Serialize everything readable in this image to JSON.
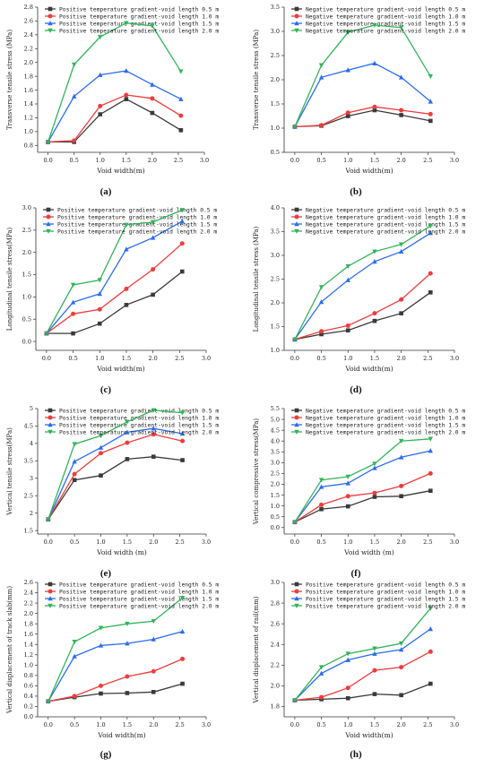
{
  "colors": {
    "black": "#3a3a3a",
    "red": "#f03c3c",
    "blue": "#2a6cf2",
    "green": "#32b45a"
  },
  "chart_data": [
    {
      "label": "(a)",
      "type": "line",
      "xlabel": "Void width(m)",
      "ylabel": "Transverse tensile stress (MPa)",
      "xlim": [
        -0.2,
        3.0
      ],
      "ylim": [
        0.7,
        2.8
      ],
      "xticks": [
        "0.0",
        "0.5",
        "1.0",
        "1.5",
        "2.0",
        "2.5",
        "3.0"
      ],
      "yticks": [
        "0.8",
        "1.0",
        "1.2",
        "1.4",
        "1.6",
        "1.8",
        "2.0",
        "2.2",
        "2.4",
        "2.6",
        "2.8"
      ],
      "legend": "top-left",
      "x": [
        0,
        0.5,
        1.0,
        1.5,
        2.0,
        2.55
      ],
      "series": [
        {
          "name": "Positive temperature gradient-void length 0.5 m",
          "color": "black",
          "marker": "square",
          "values": [
            0.85,
            0.85,
            1.25,
            1.47,
            1.27,
            1.02
          ]
        },
        {
          "name": "Positive temperature gradient-void length 1.0 m",
          "color": "red",
          "marker": "circle",
          "values": [
            0.85,
            0.87,
            1.37,
            1.53,
            1.48,
            1.23
          ]
        },
        {
          "name": "Positive temperature gradient-void length 1.5 m",
          "color": "blue",
          "marker": "up",
          "values": [
            0.85,
            1.51,
            1.82,
            1.88,
            1.68,
            1.47
          ]
        },
        {
          "name": "Positive temperature gradient-void length 2.0 m",
          "color": "green",
          "marker": "down",
          "values": [
            0.85,
            1.97,
            2.37,
            2.57,
            2.53,
            1.87
          ]
        }
      ]
    },
    {
      "label": "(b)",
      "type": "line",
      "xlabel": "Void width(m)",
      "ylabel": "Transverse tensile stress (MPa)",
      "xlim": [
        -0.2,
        3.0
      ],
      "ylim": [
        0.5,
        3.5
      ],
      "xticks": [
        "0.0",
        "0.5",
        "1.0",
        "1.5",
        "2.0",
        "2.5",
        "3.0"
      ],
      "yticks": [
        "0.5",
        "1.0",
        "1.5",
        "2.0",
        "2.5",
        "3.0",
        "3.5"
      ],
      "legend": "top-left",
      "x": [
        0,
        0.5,
        1.0,
        1.5,
        2.0,
        2.55
      ],
      "series": [
        {
          "name": "Negative temperature gradient-void length 0.5 m",
          "color": "black",
          "marker": "square",
          "values": [
            1.03,
            1.05,
            1.25,
            1.37,
            1.27,
            1.15
          ]
        },
        {
          "name": "Negative temperature gradient-void length 1.0 m",
          "color": "red",
          "marker": "circle",
          "values": [
            1.03,
            1.06,
            1.32,
            1.44,
            1.37,
            1.29
          ]
        },
        {
          "name": "Negative temperature gradient-void length 1.5 m",
          "color": "blue",
          "marker": "up",
          "values": [
            1.03,
            2.05,
            2.2,
            2.34,
            2.05,
            1.55
          ]
        },
        {
          "name": "Negative temperature gradient-void length 2.0 m",
          "color": "green",
          "marker": "down",
          "values": [
            1.03,
            2.3,
            2.98,
            3.13,
            3.08,
            2.07
          ]
        }
      ]
    },
    {
      "label": "(c)",
      "type": "line",
      "xlabel": "Void width(m)",
      "ylabel": "Longitudinal tensile stress(MPa)",
      "xlim": [
        -0.2,
        3.0
      ],
      "ylim": [
        -0.2,
        3.0
      ],
      "xticks": [
        "0.0",
        "0.5",
        "1.0",
        "1.5",
        "2.0",
        "2.5",
        "3.0"
      ],
      "yticks": [
        "0.0",
        "0.5",
        "1.0",
        "1.5",
        "2.0",
        "2.5",
        "3.0"
      ],
      "legend": "top-left",
      "x": [
        0,
        0.5,
        1.0,
        1.5,
        2.0,
        2.55
      ],
      "series": [
        {
          "name": "Positive temperature gradient-void length 0.5 m",
          "color": "black",
          "marker": "square",
          "values": [
            0.18,
            0.18,
            0.4,
            0.82,
            1.05,
            1.57
          ]
        },
        {
          "name": "Positive temperature gradient-void length 1.0 m",
          "color": "red",
          "marker": "circle",
          "values": [
            0.18,
            0.62,
            0.72,
            1.18,
            1.62,
            2.2
          ]
        },
        {
          "name": "Positive temperature gradient-void length 1.5 m",
          "color": "blue",
          "marker": "up",
          "values": [
            0.18,
            0.88,
            1.07,
            2.07,
            2.33,
            2.7
          ]
        },
        {
          "name": "Positive temperature gradient-void length 2.0 m",
          "color": "green",
          "marker": "down",
          "values": [
            0.18,
            1.27,
            1.38,
            2.62,
            2.68,
            2.95
          ]
        }
      ]
    },
    {
      "label": "(d)",
      "type": "line",
      "xlabel": "Void width(m)",
      "ylabel": "Longitudinal tensile stress (MPa)",
      "xlim": [
        -0.2,
        3.0
      ],
      "ylim": [
        1.0,
        4.0
      ],
      "xticks": [
        "0.0",
        "0.5",
        "1.0",
        "1.5",
        "2.0",
        "2.5",
        "3.0"
      ],
      "yticks": [
        "1.0",
        "1.5",
        "2.0",
        "2.5",
        "3.0",
        "3.5",
        "4.0"
      ],
      "legend": "top-left",
      "x": [
        0,
        0.5,
        1.0,
        1.5,
        2.0,
        2.55
      ],
      "series": [
        {
          "name": "Negative temperature gradient-void length 0.5 m",
          "color": "black",
          "marker": "square",
          "values": [
            1.23,
            1.34,
            1.42,
            1.62,
            1.78,
            2.22
          ]
        },
        {
          "name": "Negative temperature gradient-void length 1.0 m",
          "color": "red",
          "marker": "circle",
          "values": [
            1.23,
            1.4,
            1.52,
            1.78,
            2.07,
            2.62
          ]
        },
        {
          "name": "Negative temperature gradient-void length 1.5 m",
          "color": "blue",
          "marker": "up",
          "values": [
            1.23,
            2.02,
            2.48,
            2.87,
            3.08,
            3.47
          ]
        },
        {
          "name": "Negative temperature gradient-void length 2.0 m",
          "color": "green",
          "marker": "down",
          "values": [
            1.23,
            2.33,
            2.77,
            3.08,
            3.23,
            3.62
          ]
        }
      ]
    },
    {
      "label": "(e)",
      "type": "line",
      "xlabel": "Void width (m)",
      "ylabel": "Vertical tensile stress(MPa)",
      "xlim": [
        -0.2,
        3.0
      ],
      "ylim": [
        1.4,
        5.0
      ],
      "xticks": [
        "0.0",
        "0.5",
        "1.0",
        "1.5",
        "2.0",
        "2.5",
        "3.0"
      ],
      "yticks": [
        "1.5",
        "2",
        "2.5",
        "3",
        "3.5",
        "4",
        "4.5",
        "5"
      ],
      "legend": "top-left",
      "x": [
        0,
        0.5,
        1.0,
        1.5,
        2.0,
        2.55
      ],
      "series": [
        {
          "name": "Positive temperature gradient-void length 0.5 m",
          "color": "black",
          "marker": "square",
          "values": [
            1.82,
            2.95,
            3.08,
            3.55,
            3.62,
            3.52
          ]
        },
        {
          "name": "Positive temperature gradient-void length 1.0 m",
          "color": "red",
          "marker": "circle",
          "values": [
            1.82,
            3.12,
            3.72,
            4.02,
            4.26,
            4.07
          ]
        },
        {
          "name": "Positive temperature gradient-void length 1.5 m",
          "color": "blue",
          "marker": "up",
          "values": [
            1.82,
            3.48,
            3.88,
            4.32,
            4.43,
            4.28
          ]
        },
        {
          "name": "Positive temperature gradient-void length 2.0 m",
          "color": "green",
          "marker": "down",
          "values": [
            1.82,
            3.98,
            4.22,
            4.62,
            4.95,
            4.88
          ]
        }
      ]
    },
    {
      "label": "(f)",
      "type": "line",
      "xlabel": "Void width (m)",
      "ylabel": "Vertical compressive stress(MPa)",
      "xlim": [
        -0.2,
        3.0
      ],
      "ylim": [
        -0.3,
        5.5
      ],
      "xticks": [
        "0.0",
        "0.5",
        "1.0",
        "1.5",
        "2.0",
        "2.5",
        "3.0"
      ],
      "yticks": [
        "0.0",
        "0.5",
        "1.0",
        "1.5",
        "2.0",
        "2.5",
        "3.0",
        "3.5",
        "4.0",
        "4.5",
        "5.0",
        "5.5"
      ],
      "legend": "top-left",
      "x": [
        0,
        0.5,
        1.0,
        1.5,
        2.0,
        2.55
      ],
      "series": [
        {
          "name": "Negative temperature gradient-void length 0.5 m",
          "color": "black",
          "marker": "square",
          "values": [
            0.25,
            0.85,
            0.98,
            1.42,
            1.45,
            1.7
          ]
        },
        {
          "name": "Negative temperature gradient-void length 1.0 m",
          "color": "red",
          "marker": "circle",
          "values": [
            0.25,
            1.05,
            1.45,
            1.6,
            1.92,
            2.5
          ]
        },
        {
          "name": "Negative temperature gradient-void length 1.5 m",
          "color": "blue",
          "marker": "up",
          "values": [
            0.25,
            1.88,
            2.05,
            2.75,
            3.25,
            3.55
          ]
        },
        {
          "name": "Negative temperature gradient-void length 2.0 m",
          "color": "green",
          "marker": "down",
          "values": [
            0.25,
            2.2,
            2.35,
            2.95,
            4.0,
            4.1
          ]
        }
      ]
    },
    {
      "label": "(g)",
      "type": "line",
      "xlabel": "Void width(m)",
      "ylabel": "Vertical displacement of track slab(mm)",
      "xlim": [
        -0.2,
        3.0
      ],
      "ylim": [
        0.0,
        2.6
      ],
      "xticks": [
        "0.0",
        "0.5",
        "1.0",
        "1.5",
        "2.0",
        "2.5",
        "3.0"
      ],
      "yticks": [
        "0.0",
        "0.2",
        "0.4",
        "0.6",
        "0.8",
        "1.0",
        "1.2",
        "1.4",
        "1.6",
        "1.8",
        "2.0",
        "2.2",
        "2.4",
        "2.6"
      ],
      "legend": "top-left",
      "x": [
        0,
        0.5,
        1.0,
        1.5,
        2.0,
        2.55
      ],
      "series": [
        {
          "name": "Positive temperature gradient-void length 0.5 m",
          "color": "black",
          "marker": "square",
          "values": [
            0.3,
            0.38,
            0.45,
            0.46,
            0.48,
            0.64
          ]
        },
        {
          "name": "Positive temperature gradient-void length 1.0 m",
          "color": "red",
          "marker": "circle",
          "values": [
            0.3,
            0.4,
            0.6,
            0.78,
            0.88,
            1.12
          ]
        },
        {
          "name": "Positive temperature gradient-void length 1.5 m",
          "color": "blue",
          "marker": "up",
          "values": [
            0.3,
            1.17,
            1.38,
            1.42,
            1.5,
            1.65
          ]
        },
        {
          "name": "Positive temperature gradient-void length 2.0 m",
          "color": "green",
          "marker": "down",
          "values": [
            0.3,
            1.45,
            1.72,
            1.8,
            1.85,
            2.3
          ]
        }
      ]
    },
    {
      "label": "(h)",
      "type": "line",
      "xlabel": "Void width(m)",
      "ylabel": "Vertical displacement of rail(mm)",
      "xlim": [
        -0.2,
        3.0
      ],
      "ylim": [
        1.7,
        3.0
      ],
      "xticks": [
        "0.0",
        "0.5",
        "1.0",
        "1.5",
        "2.0",
        "2.5",
        "3.0"
      ],
      "yticks": [
        "1.8",
        "2.0",
        "2.2",
        "2.4",
        "2.6",
        "2.8",
        "3.0"
      ],
      "legend": "top-left",
      "x": [
        0,
        0.5,
        1.0,
        1.5,
        2.0,
        2.55
      ],
      "series": [
        {
          "name": "Positive temperature gradient-void length 0.5 m",
          "color": "black",
          "marker": "square",
          "values": [
            1.86,
            1.87,
            1.88,
            1.92,
            1.91,
            2.02
          ]
        },
        {
          "name": "Positive temperature gradient-void length 1.0 m",
          "color": "red",
          "marker": "circle",
          "values": [
            1.86,
            1.89,
            1.98,
            2.15,
            2.18,
            2.33
          ]
        },
        {
          "name": "Positive temperature gradient-void length 1.5 m",
          "color": "blue",
          "marker": "up",
          "values": [
            1.86,
            2.12,
            2.25,
            2.31,
            2.35,
            2.55
          ]
        },
        {
          "name": "Positive temperature gradient-void length 2.0 m",
          "color": "green",
          "marker": "down",
          "values": [
            1.86,
            2.18,
            2.31,
            2.36,
            2.41,
            2.75
          ]
        }
      ]
    }
  ]
}
